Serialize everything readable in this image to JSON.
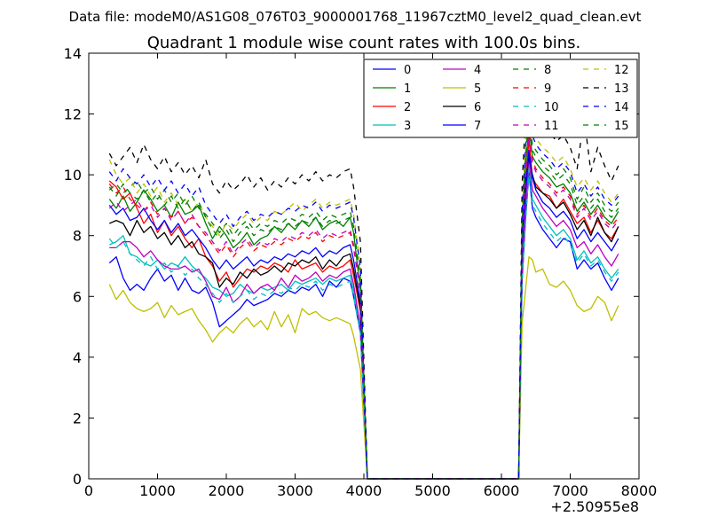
{
  "figure": {
    "suptitle": "Data file: modeM0/AS1G08_076T03_9000001768_11967cztM0_level2_quad_clean.evt"
  },
  "chart_data": {
    "type": "line",
    "title": "Quadrant 1 module wise count rates with 100.0s bins.",
    "xlabel": "",
    "ylabel": "",
    "x_offset_label": "+2.50955e8",
    "xlim": [
      0,
      8000
    ],
    "ylim": [
      0,
      14
    ],
    "xticks": [
      0,
      1000,
      2000,
      3000,
      4000,
      5000,
      6000,
      7000,
      8000
    ],
    "yticks": [
      0,
      2,
      4,
      6,
      8,
      10,
      12,
      14
    ],
    "grid": false,
    "legend_position": "top-right",
    "legend_columns": 4,
    "x": [
      300,
      400,
      500,
      600,
      700,
      800,
      900,
      1000,
      1100,
      1200,
      1300,
      1400,
      1500,
      1600,
      1700,
      1800,
      1900,
      2000,
      2100,
      2200,
      2300,
      2400,
      2500,
      2600,
      2700,
      2800,
      2900,
      3000,
      3100,
      3200,
      3300,
      3400,
      3500,
      3600,
      3700,
      3800,
      3850,
      3950,
      4050,
      4150,
      6250,
      6300,
      6350,
      6400,
      6450,
      6500,
      6600,
      6700,
      6800,
      6900,
      7000,
      7100,
      7200,
      7300,
      7400,
      7500,
      7600,
      7700
    ],
    "series": [
      {
        "name": "0",
        "color": "#0000ff",
        "dash": "solid",
        "values": [
          7.1,
          7.3,
          6.6,
          6.2,
          6.4,
          6.2,
          6.6,
          6.9,
          6.5,
          6.7,
          6.2,
          6.6,
          6.2,
          6.1,
          6.3,
          5.8,
          5.0,
          5.2,
          5.4,
          5.6,
          5.9,
          5.7,
          5.8,
          5.9,
          6.1,
          6.0,
          6.2,
          6.1,
          6.3,
          6.2,
          6.4,
          6.0,
          6.5,
          6.3,
          6.6,
          6.5,
          6.0,
          4.8,
          0.0,
          0.0,
          0.0,
          6.5,
          8.5,
          10.1,
          8.9,
          8.6,
          8.2,
          7.9,
          7.6,
          7.9,
          7.8,
          6.9,
          7.2,
          6.9,
          7.1,
          6.6,
          6.2,
          6.6
        ]
      },
      {
        "name": "1",
        "color": "#008000",
        "dash": "solid",
        "values": [
          9.2,
          8.9,
          9.3,
          8.8,
          9.1,
          9.5,
          9.2,
          8.8,
          9.0,
          8.6,
          9.1,
          8.7,
          8.8,
          9.0,
          8.4,
          7.9,
          8.3,
          8.0,
          7.6,
          7.8,
          8.1,
          7.7,
          7.9,
          8.0,
          8.3,
          8.1,
          8.4,
          8.2,
          8.5,
          8.3,
          8.6,
          8.2,
          8.4,
          8.5,
          8.3,
          8.6,
          8.1,
          6.2,
          0.0,
          0.0,
          0.0,
          8.1,
          10.2,
          11.6,
          10.6,
          10.4,
          10.1,
          9.9,
          9.6,
          9.7,
          9.4,
          8.8,
          9.1,
          8.7,
          9.0,
          8.6,
          8.4,
          8.8
        ]
      },
      {
        "name": "2",
        "color": "#ff0000",
        "dash": "solid",
        "values": [
          9.8,
          9.6,
          9.2,
          9.4,
          8.9,
          8.4,
          8.7,
          8.1,
          8.5,
          8.0,
          8.3,
          7.9,
          7.6,
          7.9,
          7.3,
          7.0,
          6.5,
          6.8,
          6.3,
          6.6,
          6.9,
          6.8,
          7.0,
          6.9,
          7.1,
          7.0,
          6.8,
          7.2,
          6.9,
          7.0,
          7.1,
          6.8,
          7.0,
          6.9,
          7.0,
          7.2,
          6.7,
          5.5,
          0.0,
          0.0,
          0.0,
          7.6,
          9.5,
          11.2,
          9.9,
          9.7,
          9.4,
          9.3,
          8.9,
          9.2,
          8.8,
          8.4,
          8.6,
          8.1,
          8.5,
          8.1,
          7.9,
          8.3
        ]
      },
      {
        "name": "3",
        "color": "#00bfbf",
        "dash": "solid",
        "values": [
          7.7,
          7.8,
          8.0,
          7.4,
          7.3,
          7.1,
          7.0,
          7.2,
          6.9,
          7.1,
          7.0,
          7.3,
          7.0,
          6.8,
          6.6,
          6.3,
          6.2,
          6.0,
          6.1,
          6.4,
          6.2,
          6.1,
          6.3,
          6.2,
          6.3,
          6.4,
          6.2,
          6.5,
          6.4,
          6.5,
          6.6,
          6.4,
          6.6,
          6.5,
          6.6,
          6.7,
          6.2,
          4.9,
          0.0,
          0.0,
          0.0,
          6.7,
          8.6,
          10.4,
          9.2,
          9.0,
          8.6,
          8.3,
          8.0,
          8.2,
          7.9,
          7.2,
          7.5,
          7.1,
          7.3,
          6.9,
          6.6,
          6.9
        ]
      },
      {
        "name": "4",
        "color": "#bf00bf",
        "dash": "solid",
        "values": [
          7.6,
          7.6,
          7.8,
          7.8,
          7.6,
          7.3,
          7.5,
          7.2,
          7.0,
          6.9,
          6.9,
          7.0,
          6.8,
          6.9,
          6.5,
          6.0,
          5.9,
          6.3,
          5.8,
          6.0,
          6.4,
          6.1,
          6.3,
          6.4,
          6.2,
          6.6,
          6.3,
          6.7,
          6.5,
          6.6,
          6.8,
          6.5,
          6.7,
          6.6,
          6.8,
          6.9,
          6.4,
          5.0,
          0.0,
          0.0,
          0.0,
          6.9,
          8.8,
          10.6,
          9.5,
          9.3,
          8.9,
          8.6,
          8.3,
          8.5,
          8.2,
          7.6,
          7.8,
          7.4,
          7.7,
          7.3,
          7.0,
          7.4
        ]
      },
      {
        "name": "5",
        "color": "#bfbf00",
        "dash": "solid",
        "values": [
          6.4,
          5.9,
          6.2,
          5.8,
          5.6,
          5.5,
          5.6,
          5.8,
          5.3,
          5.7,
          5.4,
          5.5,
          5.6,
          5.2,
          4.9,
          4.5,
          4.8,
          5.0,
          4.8,
          5.1,
          5.3,
          5.0,
          5.2,
          4.9,
          5.5,
          5.0,
          5.4,
          4.8,
          5.6,
          5.4,
          5.5,
          5.3,
          5.2,
          5.3,
          5.2,
          5.1,
          4.7,
          3.6,
          0.0,
          0.0,
          0.0,
          5.1,
          6.2,
          7.3,
          7.2,
          6.8,
          6.9,
          6.4,
          6.3,
          6.5,
          6.2,
          5.7,
          5.5,
          5.6,
          6.0,
          5.8,
          5.2,
          5.7
        ]
      },
      {
        "name": "6",
        "color": "#000000",
        "dash": "solid",
        "values": [
          8.4,
          8.5,
          8.4,
          8.0,
          8.5,
          8.1,
          8.3,
          7.9,
          8.1,
          7.7,
          8.0,
          7.6,
          7.8,
          7.4,
          7.3,
          7.1,
          6.3,
          6.6,
          6.4,
          6.8,
          6.6,
          6.9,
          6.7,
          6.8,
          7.0,
          6.8,
          7.1,
          7.0,
          7.2,
          7.1,
          7.3,
          6.9,
          7.2,
          7.0,
          7.3,
          7.4,
          6.9,
          5.6,
          0.0,
          0.0,
          0.0,
          7.8,
          9.8,
          10.6,
          10.0,
          9.6,
          9.4,
          9.2,
          8.9,
          9.1,
          8.7,
          8.2,
          8.5,
          8.0,
          8.6,
          8.1,
          7.8,
          8.3
        ]
      },
      {
        "name": "7",
        "color": "#0000ff",
        "dash": "solid",
        "values": [
          9.0,
          8.7,
          8.9,
          8.5,
          8.6,
          8.9,
          8.5,
          8.2,
          8.5,
          8.1,
          8.4,
          8.0,
          8.2,
          7.9,
          7.6,
          7.2,
          6.9,
          7.2,
          6.9,
          7.1,
          7.3,
          7.0,
          7.2,
          7.1,
          7.3,
          7.2,
          7.4,
          7.3,
          7.5,
          7.4,
          7.6,
          7.3,
          7.5,
          7.4,
          7.6,
          7.7,
          7.2,
          5.8,
          0.0,
          0.0,
          0.0,
          7.6,
          9.4,
          10.8,
          9.9,
          9.5,
          9.1,
          8.9,
          8.6,
          8.8,
          8.5,
          7.9,
          8.2,
          7.8,
          8.1,
          7.8,
          7.5,
          7.9
        ]
      },
      {
        "name": "8",
        "color": "#008000",
        "dash": "dashed",
        "values": [
          9.5,
          9.7,
          9.4,
          9.6,
          9.8,
          9.4,
          9.6,
          9.2,
          9.5,
          9.1,
          9.4,
          9.0,
          9.3,
          8.9,
          8.7,
          8.4,
          8.1,
          8.4,
          8.0,
          8.3,
          8.5,
          8.2,
          8.4,
          8.3,
          8.5,
          8.4,
          8.6,
          8.5,
          8.7,
          8.6,
          8.8,
          8.5,
          8.7,
          8.6,
          8.7,
          8.8,
          8.3,
          6.6,
          0.0,
          0.0,
          0.0,
          8.4,
          10.6,
          12.0,
          11.0,
          10.8,
          10.5,
          10.3,
          10.0,
          10.2,
          9.9,
          9.2,
          9.6,
          9.1,
          9.4,
          9.0,
          8.8,
          9.1
        ]
      },
      {
        "name": "9",
        "color": "#ff0000",
        "dash": "dashed",
        "values": [
          9.7,
          9.4,
          9.6,
          9.2,
          9.0,
          8.8,
          9.1,
          8.7,
          8.9,
          8.6,
          8.8,
          8.4,
          8.6,
          8.3,
          8.0,
          7.7,
          7.4,
          7.7,
          7.3,
          7.6,
          7.8,
          7.5,
          7.7,
          7.6,
          7.8,
          7.7,
          7.9,
          7.8,
          8.0,
          7.9,
          8.1,
          7.8,
          8.0,
          7.9,
          8.0,
          8.1,
          7.6,
          6.1,
          0.0,
          0.0,
          0.0,
          8.0,
          10.0,
          11.5,
          10.5,
          10.2,
          9.9,
          9.7,
          9.4,
          9.6,
          9.3,
          8.7,
          9.0,
          8.6,
          8.9,
          8.5,
          8.3,
          8.6
        ]
      },
      {
        "name": "10",
        "color": "#00bfbf",
        "dash": "dashed",
        "values": [
          7.9,
          7.6,
          7.8,
          7.4,
          7.2,
          7.0,
          7.3,
          6.9,
          7.1,
          6.8,
          7.0,
          6.7,
          6.9,
          6.6,
          6.4,
          6.1,
          5.8,
          6.1,
          5.8,
          6.0,
          6.2,
          5.9,
          6.1,
          6.0,
          6.2,
          6.1,
          6.3,
          6.2,
          6.4,
          6.3,
          6.5,
          6.2,
          6.4,
          6.3,
          6.4,
          6.5,
          6.0,
          4.8,
          0.0,
          0.0,
          0.0,
          6.6,
          8.4,
          10.2,
          9.0,
          8.8,
          8.4,
          8.1,
          7.8,
          8.0,
          7.7,
          7.1,
          7.4,
          7.0,
          7.2,
          6.8,
          6.5,
          6.8
        ]
      },
      {
        "name": "11",
        "color": "#bf00bf",
        "dash": "dashed",
        "values": [
          8.9,
          9.1,
          8.8,
          9.0,
          9.2,
          8.8,
          9.0,
          8.6,
          8.9,
          8.5,
          8.8,
          8.4,
          8.7,
          8.3,
          8.1,
          7.8,
          7.5,
          7.8,
          7.4,
          7.7,
          7.9,
          7.6,
          7.8,
          7.7,
          7.9,
          7.8,
          8.0,
          7.9,
          8.1,
          8.0,
          8.2,
          7.9,
          8.1,
          8.0,
          8.1,
          8.2,
          7.7,
          6.2,
          0.0,
          0.0,
          0.0,
          7.9,
          9.9,
          11.3,
          10.4,
          10.1,
          9.8,
          9.6,
          9.3,
          9.5,
          9.2,
          8.6,
          8.9,
          8.5,
          8.8,
          8.4,
          8.2,
          8.5
        ]
      },
      {
        "name": "12",
        "color": "#bfbf00",
        "dash": "dashed",
        "values": [
          10.5,
          10.0,
          9.7,
          9.9,
          9.4,
          9.7,
          9.3,
          9.6,
          9.1,
          9.4,
          9.0,
          9.2,
          8.8,
          9.1,
          8.6,
          8.3,
          8.0,
          8.4,
          8.2,
          8.5,
          8.7,
          8.4,
          8.6,
          8.5,
          8.8,
          8.7,
          8.9,
          9.1,
          8.8,
          9.0,
          9.2,
          8.9,
          9.1,
          9.0,
          9.1,
          9.2,
          8.7,
          7.0,
          0.0,
          0.0,
          0.0,
          8.9,
          11.0,
          12.5,
          11.4,
          11.2,
          10.9,
          10.7,
          10.4,
          10.6,
          10.2,
          9.6,
          9.9,
          9.5,
          9.8,
          9.4,
          9.1,
          9.4
        ]
      },
      {
        "name": "13",
        "color": "#000000",
        "dash": "dashed",
        "values": [
          10.7,
          10.3,
          10.6,
          10.9,
          10.4,
          11.0,
          10.5,
          10.2,
          10.6,
          10.1,
          10.4,
          10.0,
          10.3,
          9.9,
          10.5,
          9.7,
          9.4,
          9.8,
          9.5,
          9.7,
          10.0,
          9.6,
          9.9,
          9.5,
          9.8,
          9.6,
          9.9,
          9.7,
          10.0,
          9.8,
          10.1,
          9.8,
          10.0,
          9.9,
          10.1,
          10.2,
          9.6,
          7.8,
          0.0,
          0.0,
          0.0,
          9.7,
          11.9,
          12.9,
          12.4,
          12.0,
          11.6,
          11.4,
          11.1,
          11.3,
          10.9,
          10.2,
          11.9,
          10.1,
          10.9,
          10.3,
          9.8,
          10.3
        ]
      },
      {
        "name": "14",
        "color": "#0000ff",
        "dash": "dashed",
        "values": [
          10.1,
          9.8,
          10.2,
          9.9,
          9.7,
          10.0,
          9.6,
          9.9,
          9.5,
          9.8,
          9.4,
          9.7,
          9.3,
          9.6,
          9.0,
          8.7,
          8.4,
          8.7,
          8.3,
          8.6,
          8.8,
          8.5,
          8.7,
          8.6,
          8.8,
          8.7,
          8.9,
          8.8,
          9.0,
          8.9,
          9.1,
          8.8,
          9.0,
          8.9,
          9.0,
          9.1,
          8.6,
          6.9,
          0.0,
          0.0,
          0.0,
          8.8,
          10.9,
          12.3,
          11.3,
          11.0,
          10.7,
          10.5,
          10.2,
          10.4,
          10.1,
          9.4,
          9.7,
          9.3,
          9.6,
          9.2,
          9.0,
          9.3
        ]
      },
      {
        "name": "15",
        "color": "#008000",
        "dash": "dashed",
        "values": [
          9.6,
          9.3,
          9.7,
          9.4,
          9.2,
          9.5,
          9.1,
          9.4,
          9.0,
          9.3,
          8.9,
          9.2,
          8.8,
          9.1,
          8.6,
          8.2,
          7.9,
          8.2,
          7.8,
          8.1,
          8.3,
          8.0,
          8.2,
          8.1,
          8.3,
          8.2,
          8.4,
          8.3,
          8.5,
          8.4,
          8.6,
          8.3,
          8.5,
          8.4,
          8.5,
          8.6,
          8.1,
          6.5,
          0.0,
          0.0,
          0.0,
          8.3,
          10.4,
          11.8,
          10.8,
          10.6,
          10.3,
          10.1,
          9.8,
          10.0,
          9.7,
          9.0,
          9.3,
          8.9,
          9.2,
          8.8,
          8.6,
          8.9
        ]
      }
    ]
  }
}
